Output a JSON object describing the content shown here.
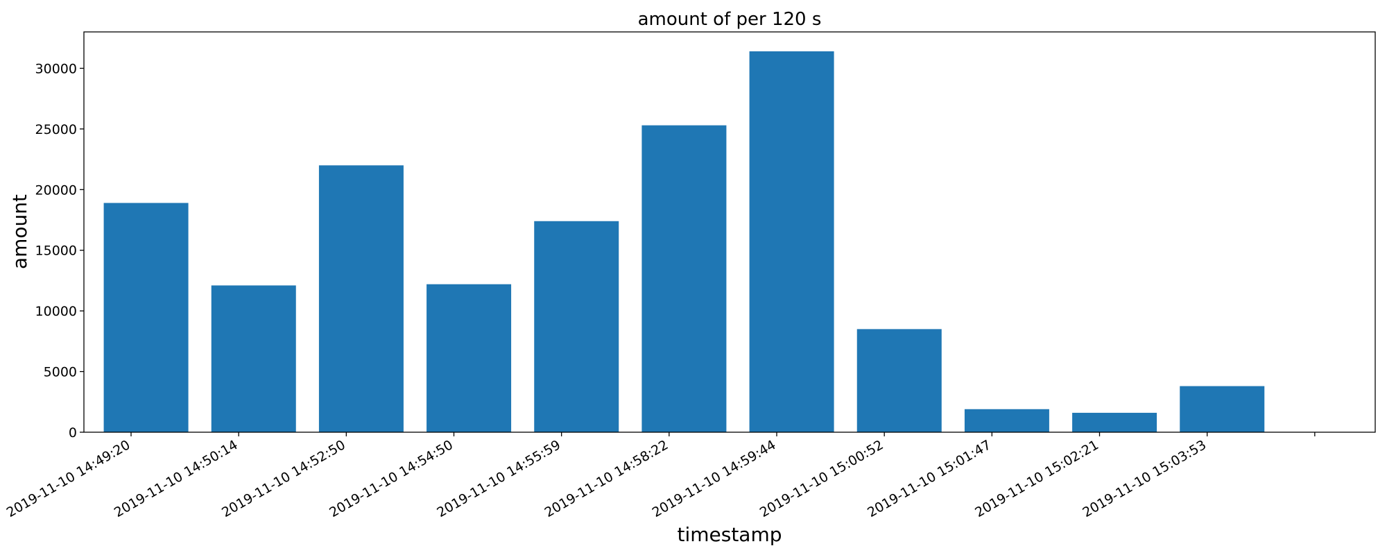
{
  "chart_data": {
    "type": "bar",
    "title": "amount of per 120 s",
    "xlabel": "timestamp",
    "ylabel": "amount",
    "categories": [
      "2019-11-10 14:49:20",
      "2019-11-10 14:50:14",
      "2019-11-10 14:52:50",
      "2019-11-10 14:54:50",
      "2019-11-10 14:55:59",
      "2019-11-10 14:58:22",
      "2019-11-10 14:59:44",
      "2019-11-10 15:00:52",
      "2019-11-10 15:01:47",
      "2019-11-10 15:02:21",
      "2019-11-10 15:03:53"
    ],
    "values": [
      18900,
      12100,
      22000,
      12200,
      17400,
      25300,
      31400,
      8500,
      1900,
      1600,
      3800
    ],
    "yticks": [
      0,
      5000,
      10000,
      15000,
      20000,
      25000,
      30000
    ],
    "ylim": [
      0,
      33000
    ],
    "grid": false,
    "bar_color": "#1f77b4"
  }
}
